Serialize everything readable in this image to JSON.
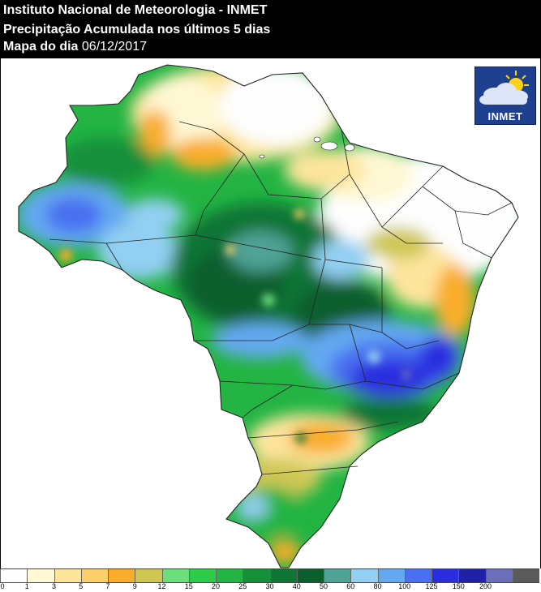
{
  "header": {
    "line1": "Instituto Nacional de Meteorologia - INMET",
    "line2": "Precipitação Acumulada nos últimos 5 dias",
    "line3_label": "Mapa do dia",
    "line3_date": "06/12/2017"
  },
  "logo": {
    "text": "INMET"
  },
  "legend": {
    "bins": [
      {
        "label": "0",
        "color": "#fefefe"
      },
      {
        "label": "1",
        "color": "#fff8d4"
      },
      {
        "label": "3",
        "color": "#fde59c"
      },
      {
        "label": "5",
        "color": "#fdcf6b"
      },
      {
        "label": "7",
        "color": "#f9ad2a"
      },
      {
        "label": "9",
        "color": "#cfc754"
      },
      {
        "label": "12",
        "color": "#6dde7c"
      },
      {
        "label": "15",
        "color": "#2ecb4a"
      },
      {
        "label": "20",
        "color": "#23b443"
      },
      {
        "label": "25",
        "color": "#17903a"
      },
      {
        "label": "30",
        "color": "#117535"
      },
      {
        "label": "40",
        "color": "#0a5f2d"
      },
      {
        "label": "50",
        "color": "#4fa296"
      },
      {
        "label": "60",
        "color": "#92cff2"
      },
      {
        "label": "80",
        "color": "#64a9f0"
      },
      {
        "label": "100",
        "color": "#4a6ff0"
      },
      {
        "label": "125",
        "color": "#2a2ee0"
      },
      {
        "label": "150",
        "color": "#2121a8"
      },
      {
        "label": "200",
        "color": "#6b6eb8"
      },
      {
        "label": "",
        "color": "#5a5a5a"
      }
    ]
  }
}
